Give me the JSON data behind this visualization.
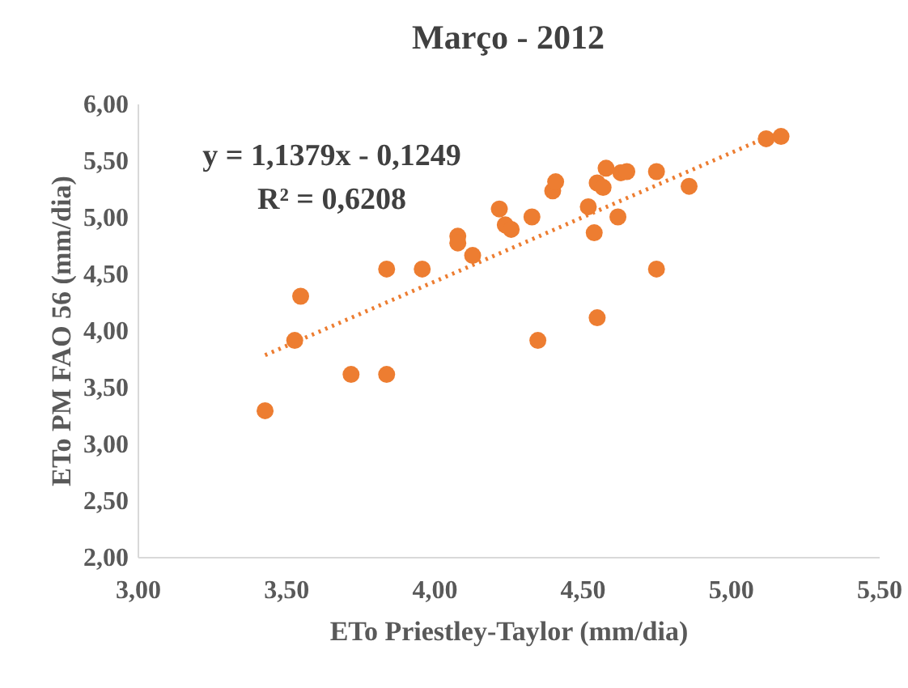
{
  "chart_data": {
    "type": "scatter",
    "title": "Março - 2012",
    "xlabel": "ETo Priestley-Taylor (mm/dia)",
    "ylabel": "ETo PM FAO 56 (mm/dia)",
    "annotations": [
      "y = 1,1379x - 0,1249",
      "R² = 0,6208"
    ],
    "xlim": [
      3,
      5.5
    ],
    "ylim": [
      2,
      6
    ],
    "xticks": [
      {
        "value": 3,
        "label": "3,00"
      },
      {
        "value": 3.5,
        "label": "3,50"
      },
      {
        "value": 4,
        "label": "4,00"
      },
      {
        "value": 4.5,
        "label": "4,50"
      },
      {
        "value": 5,
        "label": "5,00"
      },
      {
        "value": 5.5,
        "label": "5,50"
      }
    ],
    "yticks": [
      {
        "value": 2,
        "label": "2,00"
      },
      {
        "value": 2.5,
        "label": "2,50"
      },
      {
        "value": 3,
        "label": "3,00"
      },
      {
        "value": 3.5,
        "label": "3,50"
      },
      {
        "value": 4,
        "label": "4,00"
      },
      {
        "value": 4.5,
        "label": "4,50"
      },
      {
        "value": 5,
        "label": "5,00"
      },
      {
        "value": 5.5,
        "label": "5,50"
      },
      {
        "value": 6,
        "label": "6,00"
      }
    ],
    "grid": false,
    "series": [
      {
        "color": "#ed7d31",
        "marker": "circle",
        "x": [
          3.43,
          3.53,
          3.55,
          3.72,
          3.84,
          3.84,
          3.96,
          4.08,
          4.08,
          4.13,
          4.22,
          4.24,
          4.26,
          4.33,
          4.35,
          4.4,
          4.41,
          4.52,
          4.54,
          4.55,
          4.55,
          4.57,
          4.58,
          4.62,
          4.63,
          4.65,
          4.75,
          4.75,
          4.86,
          5.12,
          5.17
        ],
        "values": [
          3.29,
          3.91,
          4.3,
          3.61,
          3.61,
          4.54,
          4.54,
          4.83,
          4.77,
          4.66,
          5.07,
          4.93,
          4.89,
          5.0,
          3.91,
          5.23,
          5.31,
          5.09,
          4.86,
          4.11,
          5.3,
          5.26,
          5.43,
          5.0,
          5.39,
          5.4,
          5.4,
          4.54,
          5.27,
          5.69,
          5.71
        ]
      },
      {
        "type": "line",
        "color": "#ed7d31",
        "line_style": "dotted",
        "marker": "none",
        "x": [
          3.43,
          5.12
        ],
        "values": [
          3.78,
          5.7
        ]
      }
    ]
  }
}
